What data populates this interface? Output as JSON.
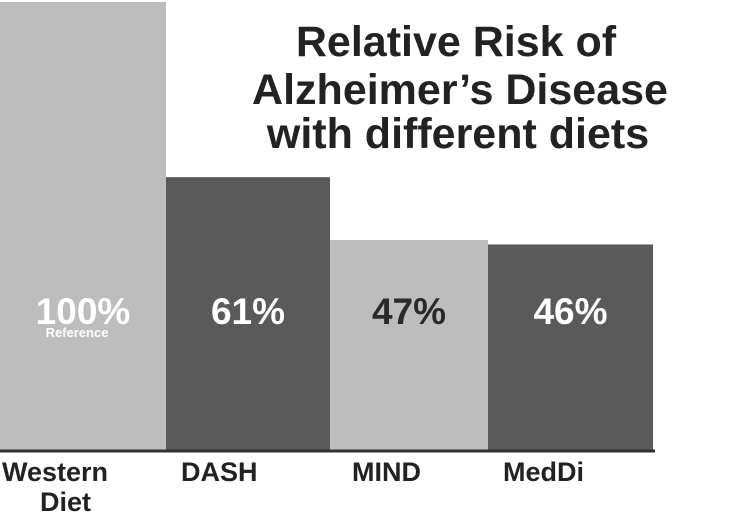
{
  "chart_data": {
    "type": "bar",
    "title_lines": [
      "Relative Risk of",
      "Alzheimer’s Disease",
      "with different diets"
    ],
    "categories": [
      "Western Diet",
      "DASH",
      "MIND",
      "MedDi"
    ],
    "category_label_lines": [
      [
        "Western",
        "Diet"
      ],
      [
        "DASH"
      ],
      [
        "MIND"
      ],
      [
        "MedDi"
      ]
    ],
    "values": [
      100,
      61,
      47,
      46
    ],
    "value_labels": [
      "100%",
      "61%",
      "47%",
      "46%"
    ],
    "value_sublabels": [
      "Reference",
      "",
      "",
      ""
    ],
    "bar_colors": [
      "#bdbdbd",
      "#5a5a5a",
      "#bdbdbd",
      "#5a5a5a"
    ],
    "label_colors": [
      "#ffffff",
      "#ffffff",
      "#2a2a2a",
      "#ffffff"
    ],
    "ylim": [
      0,
      100
    ],
    "grid": false,
    "legend": "none"
  }
}
